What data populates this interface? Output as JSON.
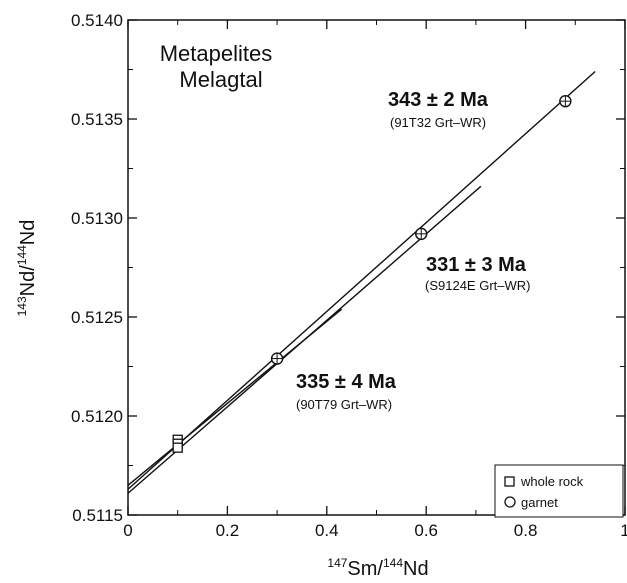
{
  "chart_data": {
    "type": "scatter",
    "title_lines": [
      "Metapelites",
      "Melagtal"
    ],
    "xlabel": {
      "sup1": "147",
      "base1": "Sm/",
      "sup2": "144",
      "base2": "Nd"
    },
    "ylabel": {
      "sup1": "143",
      "base1": "Nd/",
      "sup2": "144",
      "base2": "Nd"
    },
    "xlim": [
      0,
      1
    ],
    "ylim": [
      0.5115,
      0.514
    ],
    "x_ticks": [
      0,
      0.2,
      0.4,
      0.6,
      0.8,
      1
    ],
    "x_tick_labels": [
      "0",
      "0.2",
      "0.4",
      "0.6",
      "0.8",
      "1"
    ],
    "y_ticks": [
      0.5115,
      0.512,
      0.5125,
      0.513,
      0.5135,
      0.514
    ],
    "y_tick_labels": [
      "0.5115",
      "0.5120",
      "0.5125",
      "0.5130",
      "0.5135",
      "0.5140"
    ],
    "isochrons": [
      {
        "age": "343 ± 2 Ma",
        "sample": "(91T32 Grt–WR)",
        "line": [
          [
            0,
            0.51163
          ],
          [
            0.94,
            0.51374
          ]
        ],
        "points": [
          {
            "type": "whole rock",
            "x": 0.1,
            "y": 0.51188
          },
          {
            "type": "garnet",
            "x": 0.88,
            "y": 0.51359
          }
        ]
      },
      {
        "age": "331 ± 3 Ma",
        "sample": "(S9124E Grt–WR)",
        "line": [
          [
            0,
            0.51161
          ],
          [
            0.71,
            0.51316
          ]
        ],
        "points": [
          {
            "type": "whole rock",
            "x": 0.1,
            "y": 0.51186
          },
          {
            "type": "garnet",
            "x": 0.59,
            "y": 0.51292
          }
        ]
      },
      {
        "age": "335 ± 4 Ma",
        "sample": "(90T79 Grt–WR)",
        "line": [
          [
            0,
            0.51165
          ],
          [
            0.43,
            0.51254
          ]
        ],
        "points": [
          {
            "type": "whole rock",
            "x": 0.1,
            "y": 0.51184
          },
          {
            "type": "garnet",
            "x": 0.3,
            "y": 0.51229
          }
        ]
      }
    ],
    "legend": {
      "position": "bottom-right",
      "entries": [
        {
          "symbol": "square",
          "label": "whole rock"
        },
        {
          "symbol": "circle",
          "label": "garnet"
        }
      ]
    }
  }
}
